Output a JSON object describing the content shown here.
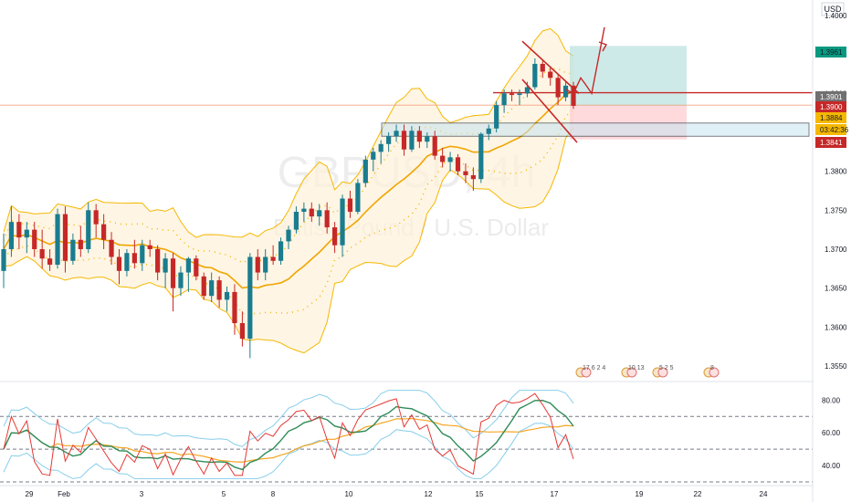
{
  "chart_data": {
    "type": "candlestick",
    "symbol_watermark": "GBPUSD, 4h",
    "symbol_description": "British Pound / U.S. Dollar",
    "currency": "USD",
    "x_ticks": [
      "29",
      "Feb",
      "3",
      "5",
      "8",
      "10",
      "12",
      "15",
      "17",
      "19",
      "22",
      "24"
    ],
    "y_ticks": [
      "1.4000",
      "1.3950",
      "1.3900",
      "1.3850",
      "1.3800",
      "1.3750",
      "1.3700",
      "1.3650",
      "1.3600",
      "1.3550"
    ],
    "ylim": [
      1.353,
      1.402
    ],
    "price_tags": [
      {
        "label": "1.3961",
        "color": "#089981",
        "text_color": "#131722"
      },
      {
        "label": "1.3901",
        "color": "#707070",
        "text_color": "#ffffff"
      },
      {
        "label": "1.3900",
        "color": "#c62828",
        "text_color": "#ffffff"
      },
      {
        "label": "1.3884",
        "color": "#f5b800",
        "text_color": "#131722"
      },
      {
        "label": "03:42:36",
        "color": "#f5b800",
        "text_color": "#131722"
      },
      {
        "label": "1.3841",
        "color": "#c62828",
        "text_color": "#ffffff"
      }
    ],
    "candles": [
      [
        1.3672,
        1.372,
        1.365,
        1.37
      ],
      [
        1.37,
        1.3755,
        1.369,
        1.3735
      ],
      [
        1.3735,
        1.3745,
        1.37,
        1.3715
      ],
      [
        1.3715,
        1.3735,
        1.3695,
        1.3725
      ],
      [
        1.3725,
        1.3735,
        1.369,
        1.37
      ],
      [
        1.37,
        1.3725,
        1.3675,
        1.3688
      ],
      [
        1.3688,
        1.37,
        1.3672,
        1.368
      ],
      [
        1.368,
        1.3752,
        1.3675,
        1.3745
      ],
      [
        1.3745,
        1.3755,
        1.367,
        1.3685
      ],
      [
        1.3685,
        1.372,
        1.368,
        1.3712
      ],
      [
        1.3712,
        1.373,
        1.369,
        1.37
      ],
      [
        1.37,
        1.376,
        1.3695,
        1.375
      ],
      [
        1.375,
        1.3758,
        1.3715,
        1.3732
      ],
      [
        1.3732,
        1.3745,
        1.37,
        1.3712
      ],
      [
        1.3712,
        1.3722,
        1.368,
        1.369
      ],
      [
        1.369,
        1.37,
        1.3655,
        1.3672
      ],
      [
        1.3672,
        1.37,
        1.3665,
        1.3695
      ],
      [
        1.3695,
        1.3712,
        1.3675,
        1.3682
      ],
      [
        1.3682,
        1.3712,
        1.3672,
        1.3705
      ],
      [
        1.3705,
        1.3712,
        1.369,
        1.37
      ],
      [
        1.37,
        1.3705,
        1.366,
        1.367
      ],
      [
        1.367,
        1.3695,
        1.365,
        1.3688
      ],
      [
        1.3688,
        1.3695,
        1.362,
        1.365
      ],
      [
        1.365,
        1.3678,
        1.364,
        1.367
      ],
      [
        1.367,
        1.369,
        1.3645,
        1.3688
      ],
      [
        1.3688,
        1.3692,
        1.366,
        1.3665
      ],
      [
        1.3665,
        1.367,
        1.3635,
        1.364
      ],
      [
        1.364,
        1.367,
        1.3632,
        1.366
      ],
      [
        1.366,
        1.3665,
        1.3625,
        1.3635
      ],
      [
        1.3635,
        1.3652,
        1.362,
        1.3645
      ],
      [
        1.3645,
        1.3655,
        1.359,
        1.3605
      ],
      [
        1.3605,
        1.362,
        1.3575,
        1.3585
      ],
      [
        1.3585,
        1.3695,
        1.356,
        1.369
      ],
      [
        1.369,
        1.37,
        1.366,
        1.367
      ],
      [
        1.367,
        1.37,
        1.366,
        1.369
      ],
      [
        1.369,
        1.3705,
        1.368,
        1.3685
      ],
      [
        1.3685,
        1.3715,
        1.368,
        1.371
      ],
      [
        1.371,
        1.373,
        1.37,
        1.3725
      ],
      [
        1.3725,
        1.3755,
        1.372,
        1.3748
      ],
      [
        1.3748,
        1.376,
        1.3735,
        1.3752
      ],
      [
        1.3752,
        1.376,
        1.3735,
        1.3742
      ],
      [
        1.3742,
        1.3758,
        1.373,
        1.375
      ],
      [
        1.375,
        1.376,
        1.372,
        1.3728
      ],
      [
        1.3728,
        1.3735,
        1.3695,
        1.3705
      ],
      [
        1.3705,
        1.377,
        1.369,
        1.3765
      ],
      [
        1.3765,
        1.3775,
        1.374,
        1.3748
      ],
      [
        1.3748,
        1.379,
        1.3745,
        1.3785
      ],
      [
        1.3785,
        1.382,
        1.378,
        1.3815
      ],
      [
        1.3815,
        1.383,
        1.38,
        1.3825
      ],
      [
        1.3825,
        1.384,
        1.381,
        1.3835
      ],
      [
        1.3835,
        1.385,
        1.3825,
        1.3845
      ],
      [
        1.3845,
        1.386,
        1.3838,
        1.3852
      ],
      [
        1.3852,
        1.386,
        1.382,
        1.3828
      ],
      [
        1.3828,
        1.3858,
        1.3825,
        1.3852
      ],
      [
        1.3852,
        1.3858,
        1.383,
        1.3838
      ],
      [
        1.3838,
        1.385,
        1.383,
        1.3845
      ],
      [
        1.3845,
        1.3852,
        1.3815,
        1.382
      ],
      [
        1.382,
        1.383,
        1.3805,
        1.3812
      ],
      [
        1.3812,
        1.3825,
        1.38,
        1.3818
      ],
      [
        1.3818,
        1.3822,
        1.3795,
        1.38
      ],
      [
        1.38,
        1.381,
        1.3785,
        1.3795
      ],
      [
        1.3795,
        1.3805,
        1.3775,
        1.379
      ],
      [
        1.379,
        1.385,
        1.3785,
        1.3848
      ],
      [
        1.3848,
        1.386,
        1.384,
        1.3855
      ],
      [
        1.3855,
        1.389,
        1.385,
        1.3885
      ],
      [
        1.3885,
        1.3905,
        1.3875,
        1.39
      ],
      [
        1.39,
        1.3905,
        1.389,
        1.3898
      ],
      [
        1.3898,
        1.3905,
        1.3885,
        1.39
      ],
      [
        1.39,
        1.3915,
        1.3895,
        1.3908
      ],
      [
        1.3908,
        1.3945,
        1.3905,
        1.3938
      ],
      [
        1.3938,
        1.3942,
        1.392,
        1.3928
      ],
      [
        1.3928,
        1.3935,
        1.391,
        1.392
      ],
      [
        1.392,
        1.3925,
        1.3885,
        1.3895
      ],
      [
        1.3895,
        1.3915,
        1.389,
        1.391
      ],
      [
        1.391,
        1.3915,
        1.388,
        1.3884
      ]
    ],
    "rsi_ticks": [
      "80.00",
      "60.00",
      "40.00"
    ],
    "rsi_ylim": [
      30,
      88
    ],
    "rsi_levels": [
      70,
      50,
      30
    ],
    "event_markers": [
      {
        "text": "17 6 2 4"
      },
      {
        "text": "10 13"
      },
      {
        "text": "5 2 5"
      },
      {
        "text": "8"
      }
    ],
    "colors": {
      "up": "#26a69a",
      "up_dark": "#1a7c8f",
      "down": "#c62828",
      "bands": "#f5b800",
      "rsi": "#e53935",
      "rsi_fast": "#2e8b57",
      "rsi_slow": "#f5a623",
      "rsi_band": "#87ceeb",
      "target_zone": "#b2dfdb",
      "stop_zone": "#ffcdd2",
      "support_zone": "#c5e4f0"
    }
  }
}
